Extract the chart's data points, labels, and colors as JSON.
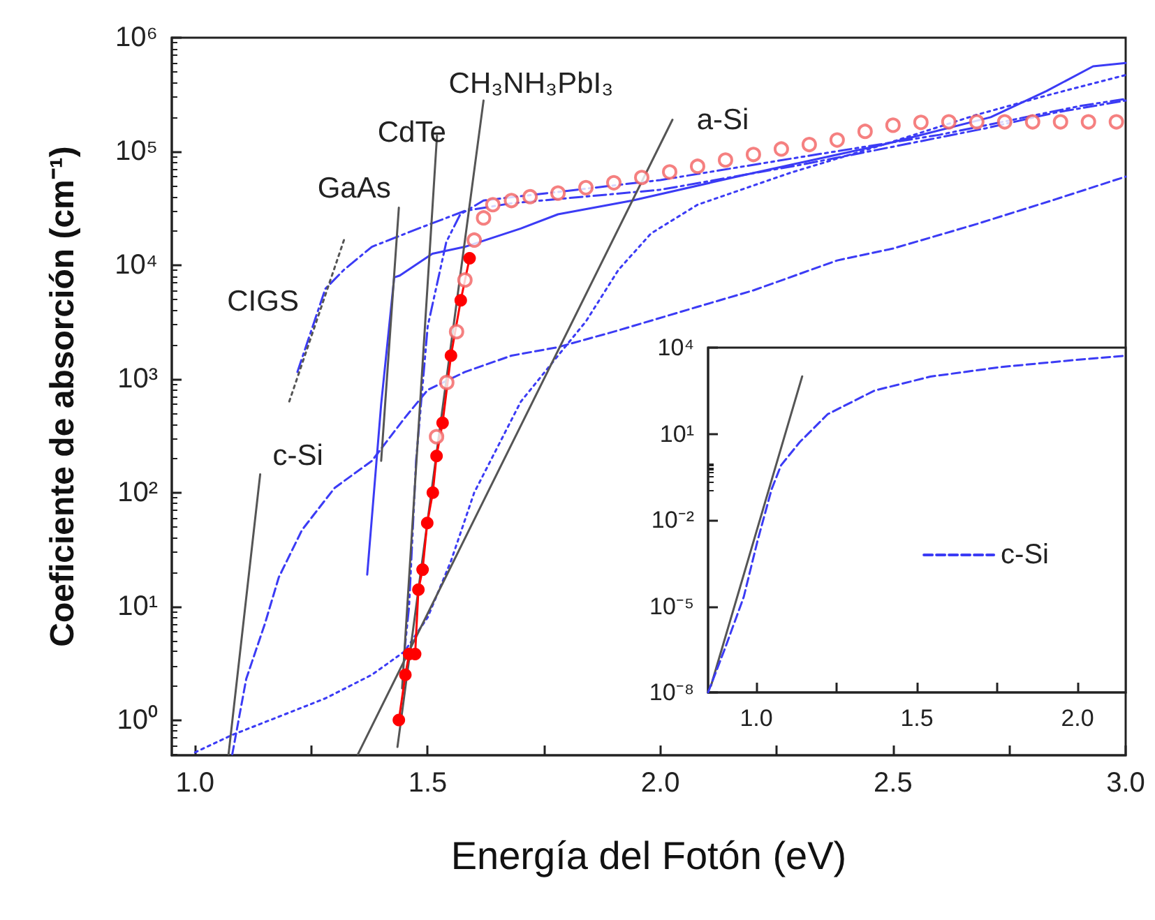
{
  "chart_data": [
    {
      "type": "line",
      "xlabel": "Energía del Fotón (eV)",
      "ylabel": "Coeficiente de absorción (cm⁻¹)",
      "log": "y",
      "grid": false,
      "legend": false,
      "xlim": [
        0.95,
        3.0
      ],
      "xticks": [
        {
          "value": 1,
          "label": "1.0"
        },
        {
          "value": 1.25,
          "label": null
        },
        {
          "value": 1.5,
          "label": "1.5"
        },
        {
          "value": 1.75,
          "label": null
        },
        {
          "value": 2,
          "label": "2.0"
        },
        {
          "value": 2.25,
          "label": null
        },
        {
          "value": 2.5,
          "label": "2.5"
        },
        {
          "value": 2.75,
          "label": null
        },
        {
          "value": 3,
          "label": "3.0"
        }
      ],
      "ylim": [
        0.49,
        1000000
      ],
      "yticks": [
        {
          "value": 1,
          "label": "10⁰"
        },
        {
          "value": 10,
          "label": "10¹"
        },
        {
          "value": 100,
          "label": "10²"
        },
        {
          "value": 1000,
          "label": "10³"
        },
        {
          "value": 10000,
          "label": "10⁴"
        },
        {
          "value": 100000,
          "label": "10⁵"
        },
        {
          "value": 1000000,
          "label": "10⁶"
        }
      ],
      "series": [
        {
          "line_style": "dashed",
          "marker": "none",
          "color": "#3b3bf5",
          "x": [
            1.08,
            1.11,
            1.15,
            1.18,
            1.23,
            1.3,
            1.38,
            1.45,
            1.5,
            1.58,
            1.68,
            1.78,
            1.9,
            2.08,
            2.2,
            2.38,
            2.5,
            2.68,
            2.85,
            3.0
          ],
          "values": [
            0.5,
            2.3,
            7,
            18,
            47,
            110,
            190,
            450,
            800,
            1150,
            1600,
            1900,
            2600,
            4300,
            6000,
            11000,
            14000,
            23000,
            38000,
            60000
          ]
        },
        {
          "line_style": "dotted",
          "marker": "none",
          "color": "#3b3bf5",
          "x": [
            1.0,
            1.08,
            1.18,
            1.28,
            1.38,
            1.45,
            1.5,
            1.55,
            1.6,
            1.7,
            1.78,
            1.84,
            1.91,
            1.98,
            2.08,
            2.28,
            2.48,
            2.68,
            2.83,
            3.0
          ],
          "values": [
            0.52,
            0.74,
            1.07,
            1.55,
            2.5,
            4,
            8,
            25,
            100,
            630,
            1600,
            3200,
            9100,
            19000,
            34000,
            65000,
            115000,
            210000,
            310000,
            470000
          ]
        },
        {
          "line_style": "solid",
          "marker": "none",
          "color": "#3b3bf5",
          "x": [
            1.37,
            1.4,
            1.428,
            1.44,
            1.51,
            1.58,
            1.7,
            1.78,
            1.94,
            2.18,
            2.48,
            2.71,
            2.83,
            2.93,
            3.0
          ],
          "values": [
            19,
            600,
            7800,
            8100,
            12600,
            14500,
            21000,
            28000,
            37000,
            62000,
            115000,
            200000,
            340000,
            560000,
            600000
          ]
        },
        {
          "line_style": "dashdot",
          "marker": "none",
          "color": "#3b3bf5",
          "x": [
            1.22,
            1.28,
            1.32,
            1.38,
            1.48,
            1.58,
            1.68,
            2.0,
            2.3,
            2.5,
            2.7,
            2.85,
            3.0
          ],
          "values": [
            1150,
            6200,
            9100,
            14500,
            21000,
            30000,
            35000,
            46000,
            76000,
            110000,
            160000,
            220000,
            280000
          ]
        },
        {
          "line_style": "dashdotdot",
          "marker": "none",
          "color": "#3b3bf5",
          "x": [
            1.45,
            1.46,
            1.475,
            1.5,
            1.54,
            1.57,
            1.62,
            1.8,
            2.0,
            2.3,
            2.6,
            2.9,
            3.0
          ],
          "values": [
            4,
            10,
            190,
            2900,
            16000,
            28000,
            37000,
            45000,
            56000,
            89000,
            140000,
            250000,
            290000
          ]
        },
        {
          "name": "c-Si",
          "line_style": "solid",
          "marker": "none",
          "color": "#555555",
          "x": [
            1.072,
            1.14
          ],
          "values": [
            0.5,
            145
          ]
        },
        {
          "name": "CIGS",
          "line_style": "dotted",
          "marker": "none",
          "color": "#555555",
          "x": [
            1.32,
            1.2
          ],
          "values": [
            16600,
            590
          ]
        },
        {
          "name": "GaAs",
          "line_style": "solid",
          "marker": "none",
          "color": "#555555",
          "x": [
            1.4,
            1.438
          ],
          "values": [
            190,
            32000
          ]
        },
        {
          "name": "CdTe",
          "line_style": "solid",
          "marker": "none",
          "color": "#555555",
          "x": [
            1.445,
            1.52
          ],
          "values": [
            1.9,
            138000
          ]
        },
        {
          "name": "CH₃NH₃PbI₃",
          "line_style": "solid",
          "marker": "none",
          "color": "#555555",
          "x": [
            1.435,
            1.62
          ],
          "values": [
            0.58,
            280000
          ]
        },
        {
          "name": "a-Si",
          "line_style": "solid",
          "marker": "none",
          "color": "#555555",
          "x": [
            1.35,
            2.026
          ],
          "values": [
            0.5,
            190000
          ]
        },
        {
          "type": "scatter",
          "marker": "circle",
          "color": "#f26060",
          "x": [
            1.519,
            1.541,
            1.562,
            1.58,
            1.6,
            1.62,
            1.64,
            1.68,
            1.72,
            1.78,
            1.84,
            1.9,
            1.96,
            2.02,
            2.08,
            2.14,
            2.2,
            2.26,
            2.32,
            2.38,
            2.44,
            2.5,
            2.56,
            2.62,
            2.68,
            2.74,
            2.8,
            2.86,
            2.92,
            2.98
          ],
          "values": [
            310,
            930,
            2600,
            7400,
            16600,
            26000,
            34000,
            37000,
            40000,
            43000,
            48000,
            53000,
            59000,
            66000,
            74000,
            84000,
            94000,
            105000,
            115000,
            126000,
            150000,
            170000,
            180000,
            182000,
            182000,
            182000,
            182000,
            182000,
            182000,
            182000
          ]
        },
        {
          "line_style": "solid",
          "marker": "circle",
          "color": "#ff0000",
          "x": [
            1.438,
            1.452,
            1.46,
            1.473,
            1.48,
            1.489,
            1.499,
            1.511,
            1.519,
            1.532,
            1.55,
            1.571,
            1.59
          ],
          "values": [
            1.0,
            2.5,
            3.8,
            3.8,
            14,
            21,
            54,
            100,
            210,
            410,
            1600,
            4900,
            11500
          ]
        }
      ]
    },
    {
      "type": "line",
      "log": "y",
      "grid": false,
      "legend": "right",
      "xlim": [
        0.85,
        2.15
      ],
      "xticks": [
        {
          "value": 1,
          "label": "1.0"
        },
        {
          "value": 1.25,
          "label": null
        },
        {
          "value": 1.5,
          "label": "1.5"
        },
        {
          "value": 1.75,
          "label": null
        },
        {
          "value": 2,
          "label": "2.0"
        }
      ],
      "ylim": [
        1e-08,
        10000
      ],
      "yticks": [
        {
          "value": 1e-08,
          "label": "10⁻⁸"
        },
        {
          "value": 1e-05,
          "label": "10⁻⁵"
        },
        {
          "value": 0.01,
          "label": "10⁻²"
        },
        {
          "value": 10,
          "label": "10¹"
        },
        {
          "value": 10000,
          "label": "10⁴"
        }
      ],
      "series": [
        {
          "line_style": "solid",
          "marker": "none",
          "color": "#555555",
          "x": [
            0.859,
            1.143
          ],
          "values": [
            1.7e-08,
            1000
          ]
        },
        {
          "name": "c-Si",
          "line_style": "dashed",
          "marker": "none",
          "color": "#3b3bf5",
          "x": [
            0.85,
            0.903,
            0.961,
            1.004,
            1.048,
            1.077,
            1.135,
            1.222,
            1.368,
            1.542,
            1.76,
            1.979,
            2.146
          ],
          "values": [
            1e-08,
            3.5e-07,
            2.1e-05,
            0.0019,
            0.12,
            0.8,
            5.1,
            48,
            320,
            980,
            2100,
            3600,
            5200
          ]
        }
      ]
    }
  ]
}
